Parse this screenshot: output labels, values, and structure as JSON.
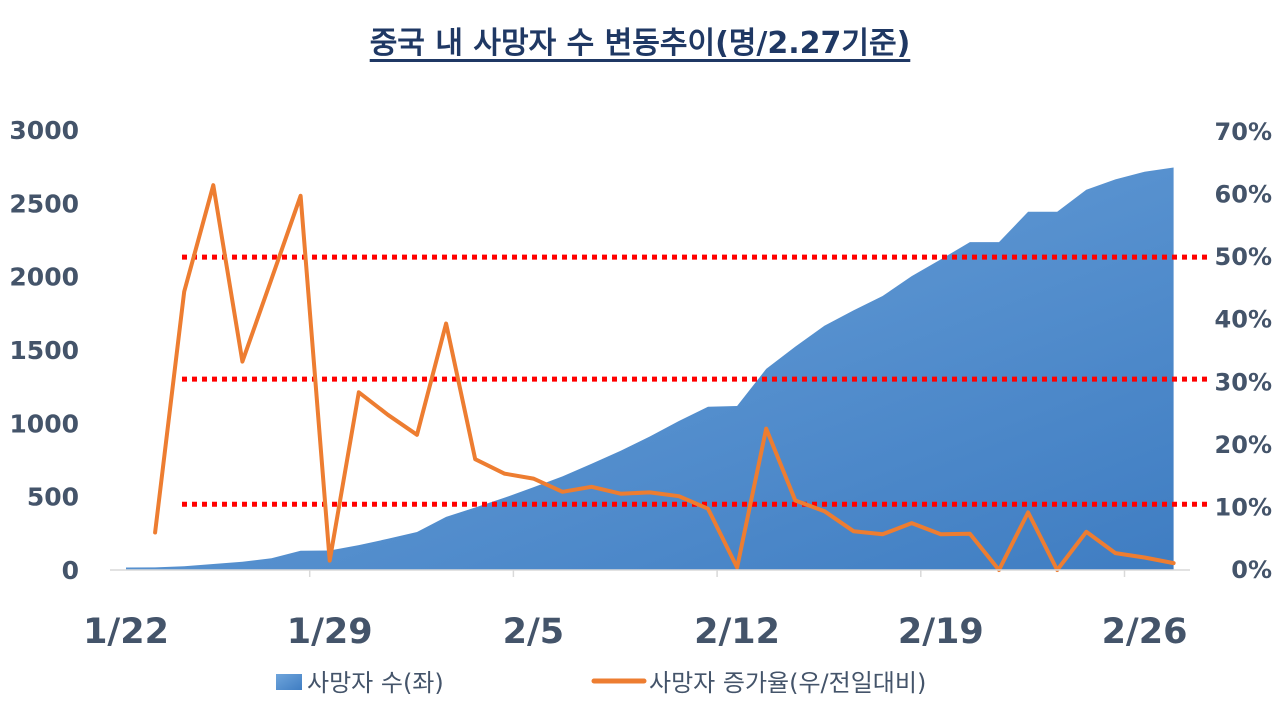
{
  "chart_data": {
    "type": "area",
    "title": "중국 내 사망자 수 변동추이(명/2.27기준)",
    "x": [
      "1/22",
      "1/23",
      "1/24",
      "1/25",
      "1/26",
      "1/27",
      "1/28",
      "1/29",
      "1/30",
      "1/31",
      "2/1",
      "2/2",
      "2/3",
      "2/4",
      "2/5",
      "2/6",
      "2/7",
      "2/8",
      "2/9",
      "2/10",
      "2/11",
      "2/12",
      "2/13",
      "2/14",
      "2/15",
      "2/16",
      "2/17",
      "2/18",
      "2/19",
      "2/20",
      "2/21",
      "2/22",
      "2/23",
      "2/24",
      "2/25",
      "2/26",
      "2/27"
    ],
    "x_tick_labels": [
      "1/22",
      "1/29",
      "2/5",
      "2/12",
      "2/19",
      "2/26"
    ],
    "left_axis": {
      "ylim": [
        0,
        3000
      ],
      "ticks": [
        "0",
        "500",
        "1000",
        "1500",
        "2000",
        "2500",
        "3000"
      ]
    },
    "right_axis": {
      "ylim": [
        0,
        70
      ],
      "ticks": [
        "0%",
        "10%",
        "20%",
        "30%",
        "40%",
        "50%",
        "60%",
        "70%"
      ]
    },
    "series": [
      {
        "name": "사망자 수(좌)",
        "type": "area",
        "axis": "left",
        "color": "#4a86c8",
        "values": [
          17,
          18,
          25,
          41,
          56,
          80,
          131,
          133,
          170,
          213,
          259,
          362,
          426,
          492,
          564,
          638,
          724,
          813,
          910,
          1016,
          1113,
          1118,
          1371,
          1523,
          1666,
          1770,
          1868,
          2004,
          2118,
          2236,
          2236,
          2442,
          2442,
          2592,
          2663,
          2715,
          2744
        ]
      },
      {
        "name": "사망자 증가율(우/전일대비)",
        "type": "line",
        "axis": "right",
        "color": "#ed7d31",
        "values": [
          null,
          6.0,
          44.5,
          61.5,
          33.3,
          46.5,
          59.8,
          1.5,
          28.4,
          24.8,
          21.6,
          39.4,
          17.7,
          15.4,
          14.6,
          12.5,
          13.3,
          12.2,
          12.4,
          11.8,
          9.8,
          0.4,
          22.6,
          11.1,
          9.4,
          6.2,
          5.7,
          7.5,
          5.7,
          5.8,
          0.0,
          9.2,
          0.0,
          6.1,
          2.7,
          2.0,
          1.1
        ]
      }
    ],
    "reference_lines": [
      {
        "axis": "right",
        "value": 50,
        "color": "#ff0000",
        "style": "dotted"
      },
      {
        "axis": "right",
        "value": 30.5,
        "color": "#ff0000",
        "style": "dotted"
      },
      {
        "axis": "right",
        "value": 10.5,
        "color": "#ff0000",
        "style": "dotted"
      }
    ],
    "legend": {
      "position": "bottom",
      "items": [
        "사망자 수(좌)",
        "사망자 증가율(우/전일대비)"
      ]
    },
    "grid": false
  }
}
